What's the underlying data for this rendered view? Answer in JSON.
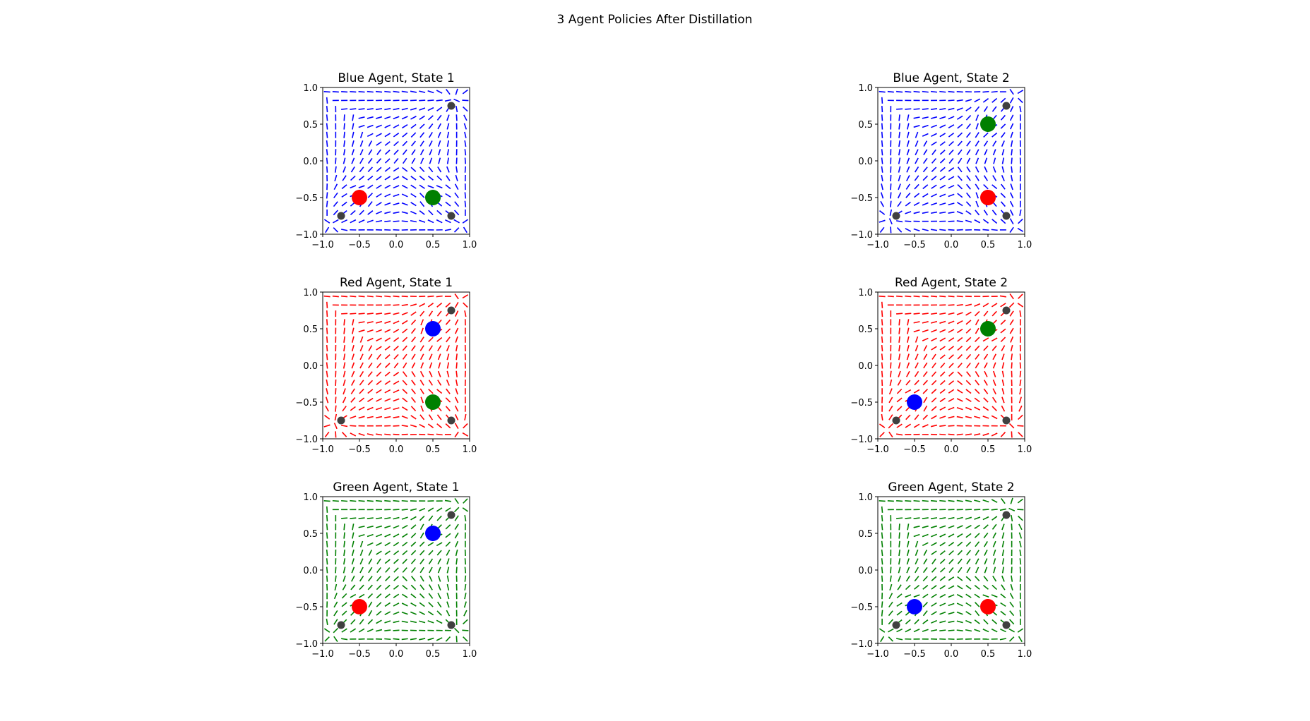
{
  "figure": {
    "suptitle": "3 Agent Policies After Distillation"
  },
  "chart_data": [
    {
      "type": "quiver",
      "title": "Blue Agent, State 1",
      "arrow_color": "#0000ff",
      "xlim": [
        -1.0,
        1.0
      ],
      "ylim": [
        -1.0,
        1.0
      ],
      "xticks": [
        "−1.0",
        "−0.5",
        "0.0",
        "0.5",
        "1.0"
      ],
      "yticks": [
        "−1.0",
        "−0.5",
        "0.0",
        "0.5",
        "1.0"
      ],
      "targets": [
        [
          0.75,
          0.75
        ],
        [
          -0.75,
          -0.75
        ],
        [
          0.75,
          -0.75
        ]
      ],
      "agents": [
        {
          "color": "#ff0000",
          "x": -0.5,
          "y": -0.5
        },
        {
          "color": "#008000",
          "x": 0.5,
          "y": -0.5
        }
      ]
    },
    {
      "type": "quiver",
      "title": "Blue Agent, State 2",
      "arrow_color": "#0000ff",
      "xlim": [
        -1.0,
        1.0
      ],
      "ylim": [
        -1.0,
        1.0
      ],
      "xticks": [
        "−1.0",
        "−0.5",
        "0.0",
        "0.5",
        "1.0"
      ],
      "yticks": [
        "−1.0",
        "−0.5",
        "0.0",
        "0.5",
        "1.0"
      ],
      "targets": [
        [
          0.75,
          0.75
        ],
        [
          -0.75,
          -0.75
        ],
        [
          0.75,
          -0.75
        ]
      ],
      "agents": [
        {
          "color": "#008000",
          "x": 0.5,
          "y": 0.5
        },
        {
          "color": "#ff0000",
          "x": 0.5,
          "y": -0.5
        }
      ]
    },
    {
      "type": "quiver",
      "title": "Red Agent, State 1",
      "arrow_color": "#ff0000",
      "xlim": [
        -1.0,
        1.0
      ],
      "ylim": [
        -1.0,
        1.0
      ],
      "xticks": [
        "−1.0",
        "−0.5",
        "0.0",
        "0.5",
        "1.0"
      ],
      "yticks": [
        "−1.0",
        "−0.5",
        "0.0",
        "0.5",
        "1.0"
      ],
      "targets": [
        [
          0.75,
          0.75
        ],
        [
          -0.75,
          -0.75
        ],
        [
          0.75,
          -0.75
        ]
      ],
      "agents": [
        {
          "color": "#0000ff",
          "x": 0.5,
          "y": 0.5
        },
        {
          "color": "#008000",
          "x": 0.5,
          "y": -0.5
        }
      ]
    },
    {
      "type": "quiver",
      "title": "Red Agent, State 2",
      "arrow_color": "#ff0000",
      "xlim": [
        -1.0,
        1.0
      ],
      "ylim": [
        -1.0,
        1.0
      ],
      "xticks": [
        "−1.0",
        "−0.5",
        "0.0",
        "0.5",
        "1.0"
      ],
      "yticks": [
        "−1.0",
        "−0.5",
        "0.0",
        "0.5",
        "1.0"
      ],
      "targets": [
        [
          0.75,
          0.75
        ],
        [
          -0.75,
          -0.75
        ],
        [
          0.75,
          -0.75
        ]
      ],
      "agents": [
        {
          "color": "#008000",
          "x": 0.5,
          "y": 0.5
        },
        {
          "color": "#0000ff",
          "x": -0.5,
          "y": -0.5
        }
      ]
    },
    {
      "type": "quiver",
      "title": "Green Agent, State 1",
      "arrow_color": "#008000",
      "xlim": [
        -1.0,
        1.0
      ],
      "ylim": [
        -1.0,
        1.0
      ],
      "xticks": [
        "−1.0",
        "−0.5",
        "0.0",
        "0.5",
        "1.0"
      ],
      "yticks": [
        "−1.0",
        "−0.5",
        "0.0",
        "0.5",
        "1.0"
      ],
      "targets": [
        [
          0.75,
          0.75
        ],
        [
          -0.75,
          -0.75
        ],
        [
          0.75,
          -0.75
        ]
      ],
      "agents": [
        {
          "color": "#0000ff",
          "x": 0.5,
          "y": 0.5
        },
        {
          "color": "#ff0000",
          "x": -0.5,
          "y": -0.5
        }
      ]
    },
    {
      "type": "quiver",
      "title": "Green Agent, State 2",
      "arrow_color": "#008000",
      "xlim": [
        -1.0,
        1.0
      ],
      "ylim": [
        -1.0,
        1.0
      ],
      "xticks": [
        "−1.0",
        "−0.5",
        "0.0",
        "0.5",
        "1.0"
      ],
      "yticks": [
        "−1.0",
        "−0.5",
        "0.0",
        "0.5",
        "1.0"
      ],
      "targets": [
        [
          0.75,
          0.75
        ],
        [
          -0.75,
          -0.75
        ],
        [
          0.75,
          -0.75
        ]
      ],
      "agents": [
        {
          "color": "#0000ff",
          "x": -0.5,
          "y": -0.5
        },
        {
          "color": "#ff0000",
          "x": 0.5,
          "y": -0.5
        }
      ]
    }
  ],
  "colors": {
    "target": "#404040"
  }
}
